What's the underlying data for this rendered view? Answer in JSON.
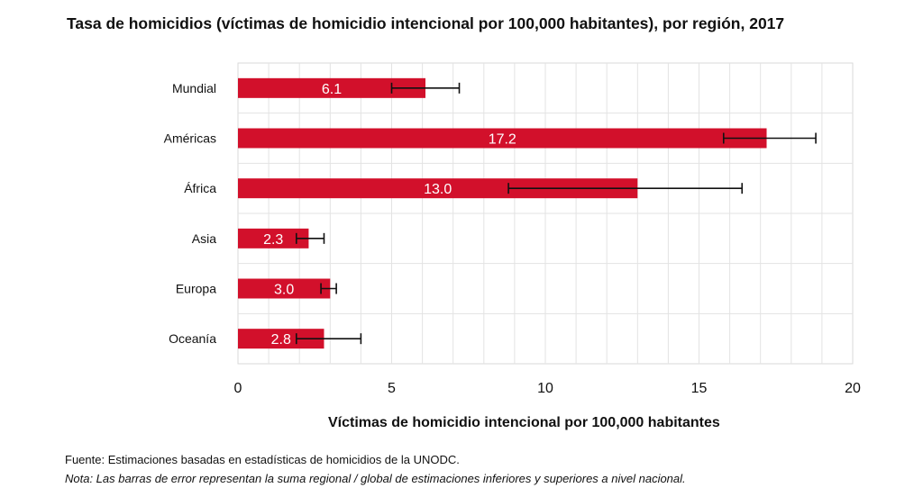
{
  "chart_data": {
    "type": "bar",
    "orientation": "horizontal",
    "title": "Tasa de homicidios (víctimas de homicidio intencional por 100,000 habitantes), por región, 2017",
    "xlabel": "Víctimas de homicidio intencional por 100,000 habitantes",
    "ylabel": "",
    "xlim": [
      0,
      20
    ],
    "xticks": [
      0,
      5,
      10,
      15,
      20
    ],
    "grid": true,
    "categories": [
      "Mundial",
      "Américas",
      "África",
      "Asia",
      "Europa",
      "Oceanía"
    ],
    "values": [
      6.1,
      17.2,
      13.0,
      2.3,
      3.0,
      2.8
    ],
    "value_labels": [
      "6.1",
      "17.2",
      "13.0",
      "2.3",
      "3.0",
      "2.8"
    ],
    "error_low": [
      5.0,
      15.8,
      8.8,
      1.9,
      2.7,
      1.9
    ],
    "error_high": [
      7.2,
      18.8,
      16.4,
      2.8,
      3.2,
      4.0
    ],
    "bar_color": "#d2102b"
  },
  "source": "Fuente: Estimaciones basadas en estadísticas de homicidios de la UNODC.",
  "note": "Nota: Las barras de error representan la suma regional / global de estimaciones inferiores y superiores a nivel nacional."
}
